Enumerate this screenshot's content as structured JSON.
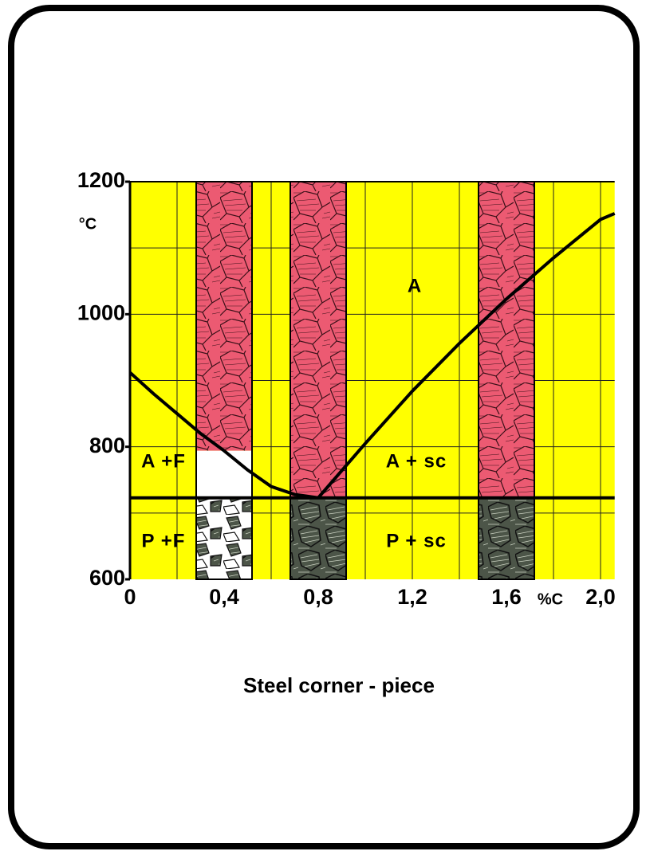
{
  "chart_data": {
    "type": "phase-diagram",
    "title": "Steel corner - piece",
    "y_unit": "°C",
    "x_unit": "%C",
    "xlim": [
      0,
      2.06
    ],
    "ylim": [
      600,
      1200
    ],
    "xticks": [
      0,
      {
        "value": 0.4,
        "label": "0,4"
      },
      {
        "value": 0.8,
        "label": "0,8"
      },
      {
        "value": 1.2,
        "label": "1,2"
      },
      {
        "value": 1.6,
        "label": "1,6"
      },
      {
        "value": 2.0,
        "label": "2,0"
      }
    ],
    "yticks": [
      600,
      800,
      1000,
      1200
    ],
    "x_gridlines": [
      0.2,
      0.4,
      0.6,
      0.8,
      1.0,
      1.2,
      1.4,
      1.6,
      1.8,
      2.0
    ],
    "y_gridlines": [
      700,
      800,
      900,
      1000,
      1100
    ],
    "background": "#ffff00",
    "series": [
      {
        "color": "#000000",
        "x": [
          0,
          0.1,
          0.2,
          0.3,
          0.4,
          0.5,
          0.6,
          0.7,
          0.8
        ],
        "values": [
          912,
          880,
          850,
          820,
          794,
          765,
          740,
          728,
          723
        ]
      },
      {
        "color": "#000000",
        "x": [
          0.8,
          1.0,
          1.2,
          1.4,
          1.6,
          1.8,
          2.0,
          2.06
        ],
        "values": [
          723,
          805,
          884,
          956,
          1023,
          1085,
          1143,
          1152
        ]
      },
      {
        "color": "#000000",
        "x": [
          0,
          2.06
        ],
        "values": [
          723,
          723
        ]
      }
    ],
    "sections": [
      0.4,
      0.8,
      1.6
    ],
    "regions": [
      "A",
      "A +F",
      "P +F",
      "A + sc",
      "P + sc"
    ]
  }
}
